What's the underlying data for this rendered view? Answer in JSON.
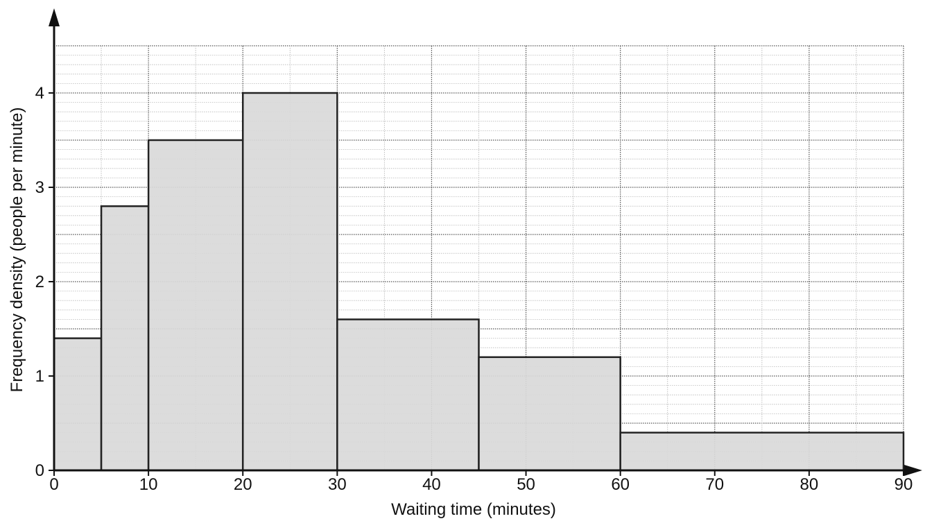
{
  "chart_data": {
    "type": "bar",
    "subtype": "histogram",
    "title": "",
    "xlabel": "Waiting time (minutes)",
    "ylabel": "Frequency density (people per minute)",
    "xlim": [
      0,
      90
    ],
    "ylim": [
      0,
      4.5
    ],
    "x_ticks": [
      0,
      10,
      20,
      30,
      40,
      50,
      60,
      70,
      80,
      90
    ],
    "y_ticks": [
      0,
      1,
      2,
      3,
      4
    ],
    "grid": true,
    "grid_minor_x": 5,
    "grid_minor_y": 0.1,
    "legend": "none",
    "bins": [
      {
        "start": 0,
        "end": 5,
        "value": 1.4
      },
      {
        "start": 5,
        "end": 10,
        "value": 2.8
      },
      {
        "start": 10,
        "end": 20,
        "value": 3.5
      },
      {
        "start": 20,
        "end": 30,
        "value": 4.0
      },
      {
        "start": 30,
        "end": 45,
        "value": 1.6
      },
      {
        "start": 45,
        "end": 60,
        "value": 1.2
      },
      {
        "start": 60,
        "end": 90,
        "value": 0.4
      }
    ]
  },
  "colors": {
    "bar_fill": "#d9d9d9",
    "bar_stroke": "#222222",
    "grid_major": "#555555",
    "grid_minor": "#b8b8b8",
    "axis": "#111111",
    "text": "#111111"
  }
}
